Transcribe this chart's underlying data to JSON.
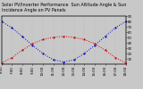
{
  "title": "Solar PV/Inverter Performance  Sun Altitude Angle & Sun Incidence Angle on PV Panels",
  "bg_color": "#c8c8c8",
  "plot_bg_color": "#c8c8c8",
  "grid_color": "#aaaaaa",
  "blue_color": "#0000cc",
  "red_color": "#cc0000",
  "x_hours": [
    6,
    7,
    8,
    9,
    10,
    11,
    12,
    13,
    14,
    15,
    16,
    17,
    18
  ],
  "sun_altitude": [
    80,
    68,
    52,
    35,
    20,
    8,
    4,
    8,
    20,
    35,
    52,
    68,
    80
  ],
  "sun_incidence": [
    2,
    12,
    26,
    38,
    46,
    50,
    52,
    50,
    46,
    38,
    26,
    12,
    2
  ],
  "ylim": [
    0,
    90
  ],
  "yticks_right": [
    10,
    20,
    30,
    40,
    50,
    60,
    70,
    80,
    90
  ],
  "xlabel_ticks": [
    "6:00",
    "7:00",
    "8:00",
    "9:00",
    "10:00",
    "11:00",
    "12:00",
    "13:00",
    "14:00",
    "15:00",
    "16:00",
    "17:00",
    "18:00"
  ],
  "title_fontsize": 3.5,
  "tick_fontsize": 2.8,
  "linewidth": 0.7,
  "markersize": 1.2
}
